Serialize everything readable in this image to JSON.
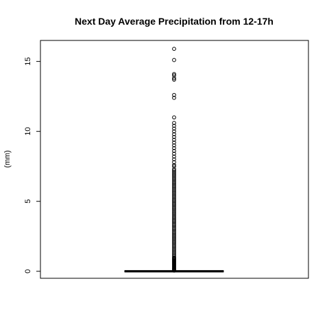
{
  "chart_data": {
    "type": "box",
    "title": "Next Day Average Precipitation from 12-17h",
    "xlabel": "",
    "ylabel": "(mm)",
    "ylim": [
      -0.5,
      16.5
    ],
    "yticks": [
      0,
      5,
      10,
      15
    ],
    "grid": false,
    "box": {
      "min": 0,
      "q1": 0,
      "median": 0,
      "q3": 0,
      "whisker_high": 0
    },
    "outliers": [
      0.05,
      0.1,
      0.15,
      0.2,
      0.25,
      0.3,
      0.35,
      0.4,
      0.45,
      0.5,
      0.55,
      0.6,
      0.65,
      0.7,
      0.75,
      0.8,
      0.85,
      0.9,
      0.95,
      1.0,
      1.1,
      1.2,
      1.3,
      1.4,
      1.5,
      1.6,
      1.7,
      1.8,
      1.9,
      2.0,
      2.1,
      2.2,
      2.3,
      2.4,
      2.5,
      2.6,
      2.7,
      2.8,
      2.9,
      3.0,
      3.1,
      3.2,
      3.3,
      3.4,
      3.5,
      3.6,
      3.7,
      3.8,
      3.9,
      4.0,
      4.1,
      4.2,
      4.3,
      4.4,
      4.5,
      4.6,
      4.7,
      4.8,
      4.9,
      5.0,
      5.1,
      5.2,
      5.3,
      5.4,
      5.5,
      5.6,
      5.7,
      5.8,
      5.9,
      6.0,
      6.1,
      6.2,
      6.3,
      6.4,
      6.5,
      6.6,
      6.7,
      6.8,
      6.9,
      7.0,
      7.1,
      7.2,
      7.3,
      7.5,
      7.6,
      7.8,
      8.0,
      8.2,
      8.4,
      8.6,
      8.8,
      9.0,
      9.2,
      9.4,
      9.6,
      9.8,
      10.0,
      10.2,
      10.4,
      10.6,
      11.0,
      12.4,
      12.6,
      13.7,
      13.8,
      14.0,
      14.1,
      15.1,
      15.9
    ]
  }
}
